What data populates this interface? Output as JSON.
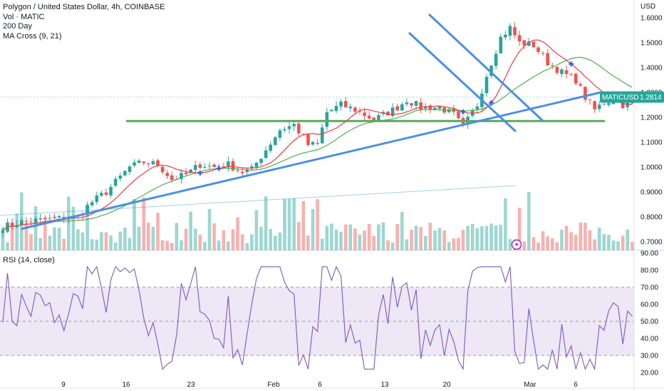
{
  "legend": {
    "symbol": "Polygon / United States Dollar, 4h, COINBASE",
    "volume": "Vol · MATIC",
    "ma200": "200 Day",
    "ma_cross": "MA Cross (9, 21)"
  },
  "rsi_label": "RSI (14, close)",
  "currency": "USD",
  "last_price": {
    "ticker": "MATICUSD",
    "value": "1.2814"
  },
  "colors": {
    "up": "#26a69a",
    "down": "#ef5350",
    "ma_fast": "#f23645",
    "ma_slow": "#4caf50",
    "trend": "#4a90e2",
    "support": "#5aa85a",
    "ma200": "#9fd3e8",
    "rsi": "#7e57c2",
    "rsi_band": "#ede7f6",
    "ticker_bg": "#26a69a",
    "cross_marker": "#2962ff"
  },
  "chart_data": [
    {
      "type": "candlestick",
      "title": "Polygon / United States Dollar, 4h, COINBASE",
      "y_ticks": [
        "1.6000",
        "1.5000",
        "1.4000",
        "1.3000",
        "1.2000",
        "1.1000",
        "1.0000",
        "0.9000",
        "0.8000",
        "0.7000"
      ],
      "x_ticks": [
        "9",
        "16",
        "23",
        "Feb",
        "6",
        "13",
        "20",
        "Mar",
        "6"
      ],
      "ylim": [
        0.68,
        1.64
      ],
      "close_points": [
        {
          "t": 0,
          "v": 0.76
        },
        {
          "t": 4,
          "v": 0.78
        },
        {
          "t": 10,
          "v": 0.79
        },
        {
          "t": 16,
          "v": 0.8
        },
        {
          "t": 19,
          "v": 0.86
        },
        {
          "t": 22,
          "v": 0.9
        },
        {
          "t": 25,
          "v": 0.96
        },
        {
          "t": 27,
          "v": 1.0
        },
        {
          "t": 30,
          "v": 1.02
        },
        {
          "t": 33,
          "v": 1.01
        },
        {
          "t": 36,
          "v": 0.95
        },
        {
          "t": 39,
          "v": 0.97
        },
        {
          "t": 42,
          "v": 1.01
        },
        {
          "t": 45,
          "v": 1.0
        },
        {
          "t": 48,
          "v": 1.01
        },
        {
          "t": 51,
          "v": 0.98
        },
        {
          "t": 53,
          "v": 0.99
        },
        {
          "t": 56,
          "v": 1.07
        },
        {
          "t": 59,
          "v": 1.15
        },
        {
          "t": 62,
          "v": 1.17
        },
        {
          "t": 65,
          "v": 1.09
        },
        {
          "t": 67,
          "v": 1.09
        },
        {
          "t": 69,
          "v": 1.22
        },
        {
          "t": 72,
          "v": 1.25
        },
        {
          "t": 75,
          "v": 1.23
        },
        {
          "t": 79,
          "v": 1.19
        },
        {
          "t": 84,
          "v": 1.24
        },
        {
          "t": 86,
          "v": 1.27
        },
        {
          "t": 89,
          "v": 1.24
        },
        {
          "t": 93,
          "v": 1.24
        },
        {
          "t": 96,
          "v": 1.21
        },
        {
          "t": 98,
          "v": 1.16
        },
        {
          "t": 101,
          "v": 1.25
        },
        {
          "t": 103,
          "v": 1.37
        },
        {
          "t": 106,
          "v": 1.52
        },
        {
          "t": 108,
          "v": 1.56
        },
        {
          "t": 110,
          "v": 1.5
        },
        {
          "t": 113,
          "v": 1.49
        },
        {
          "t": 116,
          "v": 1.42
        },
        {
          "t": 119,
          "v": 1.38
        },
        {
          "t": 122,
          "v": 1.35
        },
        {
          "t": 124,
          "v": 1.28
        },
        {
          "t": 126,
          "v": 1.23
        },
        {
          "t": 128,
          "v": 1.26
        },
        {
          "t": 130,
          "v": 1.27
        },
        {
          "t": 132,
          "v": 1.25
        }
      ],
      "support_level": 1.185,
      "rsi": {
        "y_ticks": [
          "90.00",
          "80.00",
          "70.00",
          "60.00",
          "50.00",
          "40.00",
          "30.00",
          "20.00"
        ],
        "ylim": [
          17,
          92
        ],
        "band": [
          30,
          70
        ],
        "mid": 50
      }
    }
  ]
}
